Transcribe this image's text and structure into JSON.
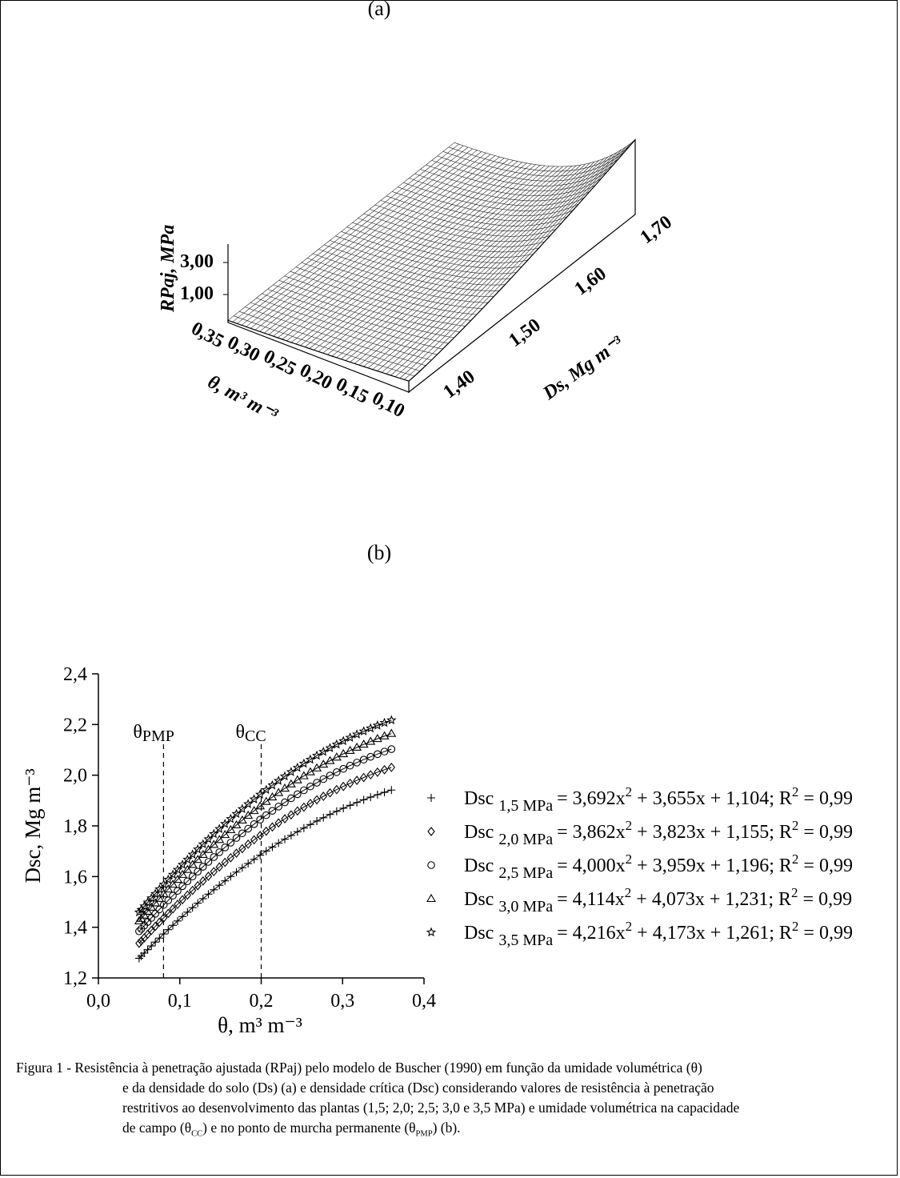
{
  "panel_labels": {
    "a": "(a)",
    "b": "(b)"
  },
  "chart_data": [
    {
      "type": "surface3d",
      "panel": "(a)",
      "zlabel": "RPaj, MPa",
      "xlabel": "θ, m³ m⁻³",
      "ylabel": "Ds, Mg m⁻³",
      "z_ticks": [
        "3,00",
        "1,00"
      ],
      "theta_ticks": [
        "0,35",
        "0,30",
        "0,25",
        "0,20",
        "0,15",
        "0,10"
      ],
      "ds_ticks": [
        "1,40",
        "1,50",
        "1,60",
        "1,70"
      ],
      "theta_range": [
        0.1,
        0.35
      ],
      "ds_range": [
        1.35,
        1.72
      ]
    },
    {
      "type": "scatter",
      "panel": "(b)",
      "xlabel": "θ, m³ m⁻³",
      "ylabel": "Dsc, Mg m⁻³",
      "xlim": [
        0.0,
        0.4
      ],
      "ylim": [
        1.2,
        2.4
      ],
      "x_ticks": [
        "0,0",
        "0,1",
        "0,2",
        "0,3",
        "0,4"
      ],
      "y_ticks": [
        "1,2",
        "1,4",
        "1,6",
        "1,8",
        "2,0",
        "2,2",
        "2,4"
      ],
      "vlines": [
        {
          "x": 0.08,
          "label": "θ",
          "sub": "PMP"
        },
        {
          "x": 0.2,
          "label": "θ",
          "sub": "CC"
        }
      ],
      "x_range_data": [
        0.05,
        0.36
      ],
      "series": [
        {
          "marker": "plus",
          "name": "Dsc",
          "sub": "1,5 MPa",
          "eq": "= 3,692x",
          "eq2": " + 3,655x + 1,104; R",
          "r2": " = 0,99",
          "a": -3.692,
          "b": 3.655,
          "c": 1.104
        },
        {
          "marker": "diamond",
          "name": "Dsc",
          "sub": "2,0 MPa",
          "eq": "= 3,862x",
          "eq2": " + 3,823x + 1,155; R",
          "r2": " = 0,99",
          "a": -3.862,
          "b": 3.823,
          "c": 1.155
        },
        {
          "marker": "circle",
          "name": "Dsc",
          "sub": "2,5 MPa",
          "eq": "= 4,000x",
          "eq2": " + 3,959x + 1,196; R",
          "r2": " = 0,99",
          "a": -4.0,
          "b": 3.959,
          "c": 1.196
        },
        {
          "marker": "triangle",
          "name": "Dsc",
          "sub": "3,0 MPa",
          "eq": "= 4,114x",
          "eq2": " + 4,073x + 1,231; R",
          "r2": " = 0,99",
          "a": -4.114,
          "b": 4.073,
          "c": 1.231
        },
        {
          "marker": "star",
          "name": "Dsc",
          "sub": "3,5 MPa",
          "eq": "= 4,216x",
          "eq2": " + 4,173x + 1,261; R",
          "r2": " = 0,99",
          "a": -4.216,
          "b": 4.173,
          "c": 1.261
        }
      ]
    }
  ],
  "caption": {
    "prefix": "Figura 1 - ",
    "line1": "Resistência à penetração ajustada (RPaj) pelo modelo de Buscher (1990) em função da umidade volumétrica (θ)",
    "line2": "e da densidade do solo (Ds) (a) e densidade crítica (Dsc) considerando valores de resistência à penetração",
    "line3": "restritivos ao desenvolvimento das plantas (1,5; 2,0; 2,5; 3,0 e 3,5 MPa) e umidade volumétrica na capacidade",
    "line4a": "de campo (θ",
    "line4_sub1": "CC",
    "line4b": ") e no ponto de murcha permanente (θ",
    "line4_sub2": "PMP",
    "line4c": ") (b)."
  }
}
